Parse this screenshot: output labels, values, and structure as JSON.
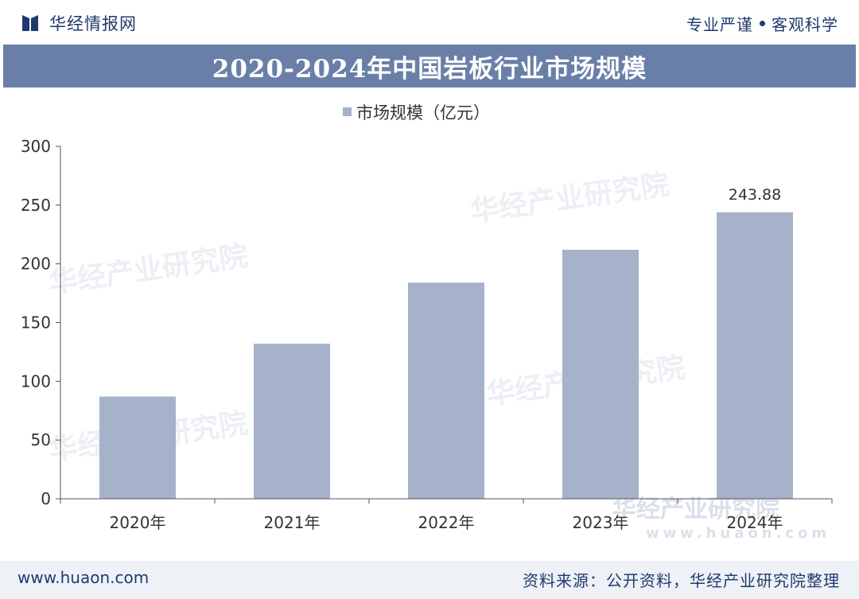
{
  "header": {
    "brand": "华经情报网",
    "slogan_left": "专业严谨",
    "slogan_right": "客观科学"
  },
  "title": "2020-2024年中国岩板行业市场规模",
  "chart_data": {
    "type": "bar",
    "categories": [
      "2020年",
      "2021年",
      "2022年",
      "2023年",
      "2024年"
    ],
    "series": [
      {
        "name": "市场规模（亿元）",
        "values": [
          87,
          132,
          184,
          212,
          243.88
        ]
      }
    ],
    "data_labels": [
      null,
      null,
      null,
      null,
      "243.88"
    ],
    "ylim": [
      0,
      300
    ],
    "yticks": [
      0,
      50,
      100,
      150,
      200,
      250,
      300
    ],
    "legend_position": "top-center",
    "grid": false,
    "colors": {
      "bar": "#a6b2c9",
      "axis": "#555555"
    }
  },
  "watermark": {
    "cn": "华经产业研究院",
    "url": "www.huaon.com"
  },
  "footer": {
    "url": "www.huaon.com",
    "source": "资料来源：公开资料，华经产业研究院整理"
  }
}
